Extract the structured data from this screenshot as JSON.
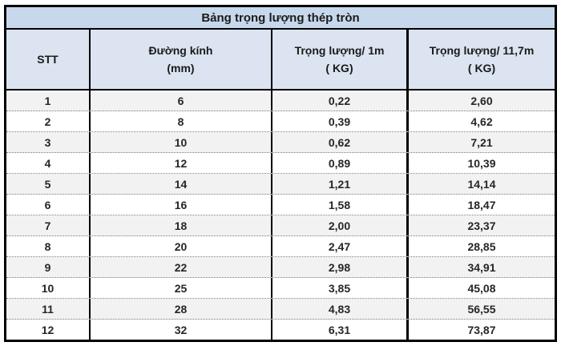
{
  "table": {
    "title": "Bảng trọng lượng thép tròn",
    "columns": [
      {
        "line1": "STT",
        "line2": ""
      },
      {
        "line1": "Đường kính",
        "line2": "(mm)"
      },
      {
        "line1": "Trọng lượng/ 1m",
        "line2": "( KG)"
      },
      {
        "line1": "Trọng lượng/ 11,7m",
        "line2": "( KG)"
      }
    ],
    "rows": [
      [
        "1",
        "6",
        "0,22",
        "2,60"
      ],
      [
        "2",
        "8",
        "0,39",
        "4,62"
      ],
      [
        "3",
        "10",
        "0,62",
        "7,21"
      ],
      [
        "4",
        "12",
        "0,89",
        "10,39"
      ],
      [
        "5",
        "14",
        "1,21",
        "14,14"
      ],
      [
        "6",
        "16",
        "1,58",
        "18,47"
      ],
      [
        "7",
        "18",
        "2,00",
        "23,37"
      ],
      [
        "8",
        "20",
        "2,47",
        "28,85"
      ],
      [
        "9",
        "22",
        "2,98",
        "34,91"
      ],
      [
        "10",
        "25",
        "3,85",
        "45,08"
      ],
      [
        "11",
        "28",
        "4,83",
        "56,55"
      ],
      [
        "12",
        "32",
        "6,31",
        "73,87"
      ]
    ],
    "colors": {
      "title_bg": "#c8d8ec",
      "header_bg": "#dbe4f0",
      "row_odd_bg": "#f2f2f2",
      "row_even_bg": "#ffffff",
      "border": "#000000",
      "row_separator": "#7f7f7f",
      "text": "#262626"
    }
  }
}
